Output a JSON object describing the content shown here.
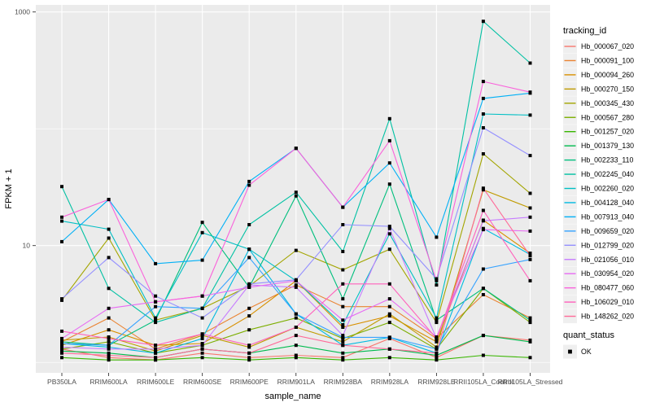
{
  "chart_data": {
    "type": "line",
    "title": "",
    "xlabel": "sample_name",
    "ylabel": "FPKM + 1",
    "y_scale": "log10",
    "grid": true,
    "panel_bg": "#EBEBEB",
    "grid_color": "#FFFFFF",
    "tick_label_color": "#4D4D4D",
    "point_color": "#000000",
    "point_shape": "square",
    "y_major_ticks": [
      {
        "label": "10",
        "value": 10
      },
      {
        "label": "1000",
        "value": 1000
      }
    ],
    "y_minor_values": [
      1,
      100
    ],
    "ylim": [
      1,
      1200
    ],
    "categories": [
      "PB350LA",
      "RRIM600LA",
      "RRIM600LE",
      "RRIM600SE",
      "RRIM600PE",
      "RRIM901LA",
      "RRIM928BA",
      "RRIM928LA",
      "RRIM928LE",
      "RRII105LA_Control",
      "RRII105LA_Stressed"
    ],
    "legend": {
      "color_title": "tracking_id",
      "shape_title": "quant_status",
      "shape_items": [
        {
          "label": "OK"
        }
      ],
      "key_bg": "#EFEFEF"
    },
    "series": [
      {
        "name": "Hb_000067_020",
        "color": "#F8766D",
        "values": [
          1.3,
          1.1,
          1.05,
          1.2,
          1.1,
          1.15,
          1.1,
          1.6,
          1.1,
          1.7,
          1.55
        ]
      },
      {
        "name": "Hb_000091_100",
        "color": "#EA8331",
        "values": [
          1.5,
          2.4,
          1.3,
          1.75,
          2.9,
          4.6,
          3.0,
          3.0,
          1.6,
          3.8,
          2.4
        ]
      },
      {
        "name": "Hb_000094_260",
        "color": "#D89000",
        "values": [
          1.4,
          1.9,
          1.4,
          1.45,
          2.5,
          5.0,
          2.0,
          2.5,
          1.5,
          16.5,
          8.6
        ]
      },
      {
        "name": "Hb_000270_150",
        "color": "#C09B00",
        "values": [
          1.55,
          1.65,
          1.25,
          1.7,
          1.35,
          2.0,
          1.5,
          2.6,
          1.35,
          30.0,
          21.0
        ]
      },
      {
        "name": "Hb_000345_430",
        "color": "#A3A500",
        "values": [
          3.4,
          11.6,
          2.3,
          2.9,
          4.5,
          9.1,
          6.2,
          9.3,
          2.2,
          61.0,
          28.0
        ]
      },
      {
        "name": "Hb_000567_280",
        "color": "#7CAE00",
        "values": [
          1.3,
          1.5,
          1.2,
          1.4,
          1.9,
          2.4,
          1.6,
          2.2,
          1.3,
          4.3,
          2.2
        ]
      },
      {
        "name": "Hb_001257_020",
        "color": "#39B600",
        "values": [
          1.1,
          1.05,
          1.05,
          1.1,
          1.05,
          1.1,
          1.05,
          1.1,
          1.05,
          1.15,
          1.1
        ]
      },
      {
        "name": "Hb_001379_130",
        "color": "#00BB4E",
        "values": [
          1.25,
          1.2,
          1.1,
          1.3,
          1.2,
          1.4,
          1.2,
          1.3,
          1.15,
          1.7,
          1.5
        ]
      },
      {
        "name": "Hb_002233_110",
        "color": "#00BF7D",
        "values": [
          1.5,
          1.4,
          2.3,
          15.8,
          4.4,
          26.6,
          3.5,
          33.6,
          2.3,
          4.3,
          2.3
        ]
      },
      {
        "name": "Hb_002245_040",
        "color": "#00C1A3",
        "values": [
          32.0,
          4.3,
          2.2,
          2.9,
          15.1,
          28.6,
          8.9,
          122.0,
          4.6,
          832.0,
          365.0
        ]
      },
      {
        "name": "Hb_002260_020",
        "color": "#00BFC4",
        "values": [
          16.2,
          13.8,
          2.4,
          12.9,
          9.3,
          5.0,
          2.1,
          12.6,
          2.4,
          134.0,
          131.0
        ]
      },
      {
        "name": "Hb_004128_040",
        "color": "#00BAE0",
        "values": [
          1.45,
          1.35,
          1.2,
          1.6,
          9.3,
          2.6,
          1.4,
          1.64,
          1.2,
          14.0,
          8.4
        ]
      },
      {
        "name": "Hb_007913_040",
        "color": "#00B0F6",
        "values": [
          10.8,
          24.8,
          7.0,
          7.5,
          35.4,
          68.0,
          21.3,
          51.0,
          11.8,
          182.0,
          202.0
        ]
      },
      {
        "name": "Hb_009659_020",
        "color": "#35A2FF",
        "values": [
          1.45,
          1.4,
          3.0,
          2.9,
          7.9,
          2.6,
          1.64,
          1.64,
          1.3,
          6.3,
          7.6
        ]
      },
      {
        "name": "Hb_012799_020",
        "color": "#9590FF",
        "values": [
          3.5,
          7.9,
          3.7,
          2.4,
          4.7,
          5.1,
          15.1,
          14.6,
          5.2,
          102.0,
          59.0
        ]
      },
      {
        "name": "Hb_021056_010",
        "color": "#C77CFF",
        "values": [
          1.35,
          1.3,
          1.3,
          1.4,
          4.6,
          4.4,
          1.7,
          14.0,
          1.6,
          16.3,
          17.5
        ]
      },
      {
        "name": "Hb_030954_020",
        "color": "#E76BF3",
        "values": [
          1.6,
          2.9,
          3.3,
          3.7,
          4.4,
          5.0,
          2.3,
          3.5,
          1.65,
          13.7,
          13.3
        ]
      },
      {
        "name": "Hb_080477_060",
        "color": "#FA62DB",
        "values": [
          17.5,
          24.8,
          3.3,
          3.7,
          32.9,
          68.0,
          21.3,
          79.0,
          5.0,
          254.0,
          206.0
        ]
      },
      {
        "name": "Hb_106029_010",
        "color": "#FF62BC",
        "values": [
          1.85,
          1.6,
          1.4,
          1.75,
          1.4,
          2.0,
          4.7,
          4.7,
          1.6,
          20.0,
          5.0
        ]
      },
      {
        "name": "Hb_148262_020",
        "color": "#FF6A98",
        "values": [
          1.2,
          1.15,
          1.1,
          1.3,
          1.2,
          1.7,
          1.4,
          1.3,
          1.2,
          31.0,
          8.2
        ]
      }
    ]
  }
}
